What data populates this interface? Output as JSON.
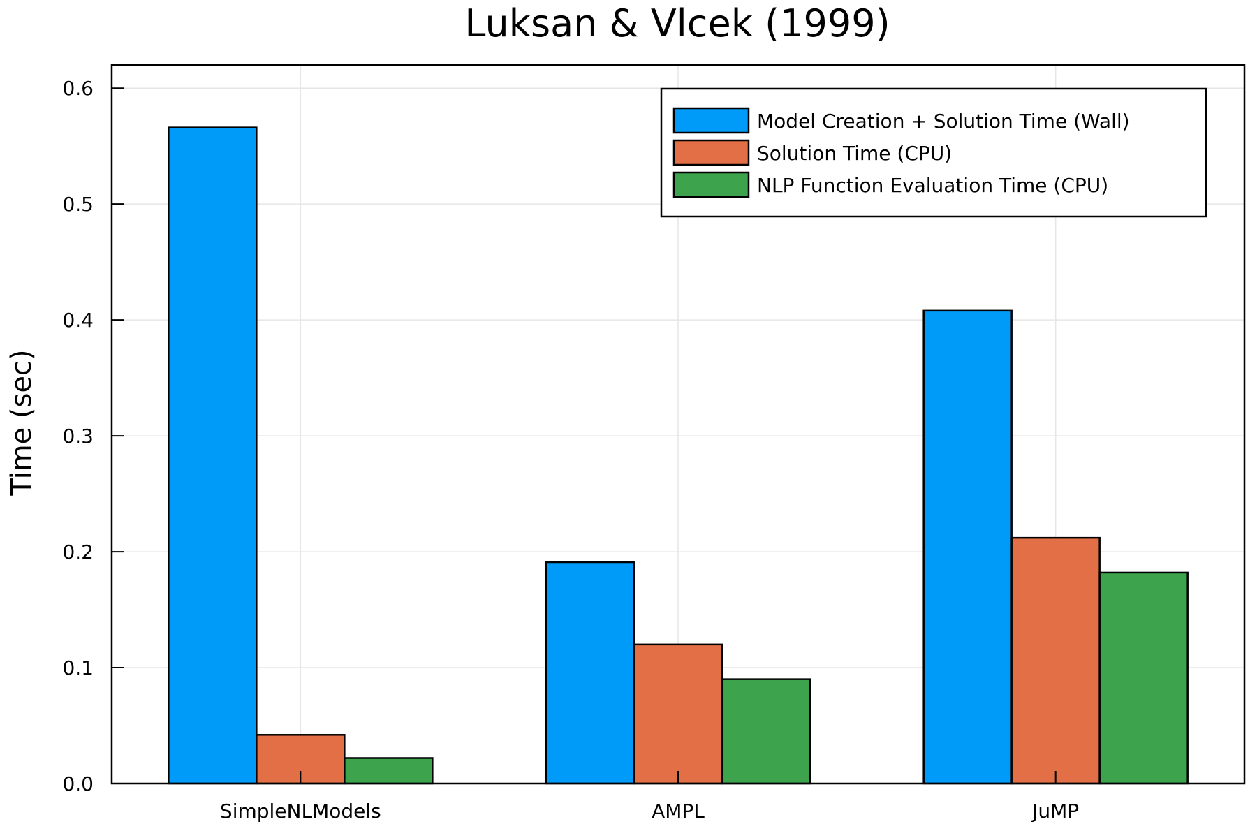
{
  "chart_data": {
    "type": "bar",
    "title": "Luksan & Vlcek (1999)",
    "xlabel": "",
    "ylabel": "Time (sec)",
    "categories": [
      "SimpleNLModels",
      "AMPL",
      "JuMP"
    ],
    "ylim": [
      0.0,
      0.62
    ],
    "yticks": [
      0.0,
      0.1,
      0.2,
      0.3,
      0.4,
      0.5,
      0.6
    ],
    "ytick_labels": [
      "0.0",
      "0.1",
      "0.2",
      "0.3",
      "0.4",
      "0.5",
      "0.6"
    ],
    "grid": true,
    "legend_position": "top-right",
    "series": [
      {
        "name": "Model Creation + Solution Time (Wall)",
        "color": "#009af9",
        "values": [
          0.566,
          0.191,
          0.408
        ]
      },
      {
        "name": "Solution Time (CPU)",
        "color": "#e26f46",
        "values": [
          0.042,
          0.12,
          0.212
        ]
      },
      {
        "name": "NLP Function Evaluation Time (CPU)",
        "color": "#3da44d",
        "values": [
          0.022,
          0.09,
          0.182
        ]
      }
    ]
  }
}
